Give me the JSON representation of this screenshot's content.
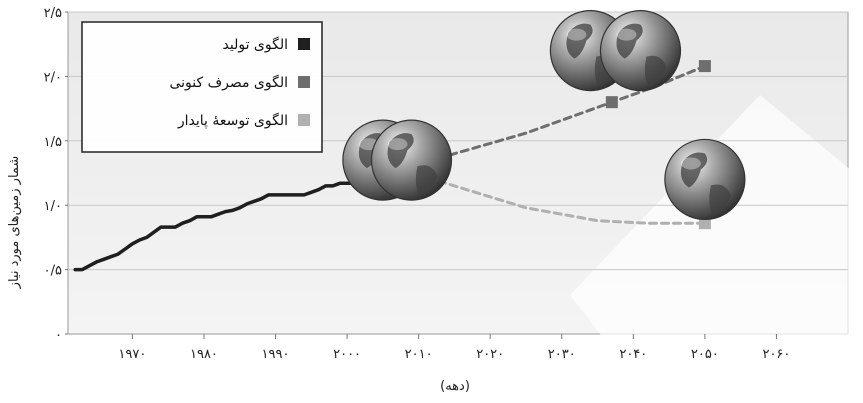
{
  "chart_data": {
    "type": "line",
    "ylabel": "شمار زمین‌های مورد نیاز",
    "xlabel": "(دهه)",
    "x_ticks": [
      1970,
      1980,
      1990,
      2000,
      2010,
      2020,
      2030,
      2040,
      2050,
      2060
    ],
    "x_tick_labels": [
      "۱۹۷۰",
      "۱۹۸۰",
      "۱۹۹۰",
      "۲۰۰۰",
      "۲۰۱۰",
      "۲۰۲۰",
      "۲۰۳۰",
      "۲۰۴۰",
      "۲۰۵۰",
      "۲۰۶۰"
    ],
    "y_ticks": [
      0,
      0.5,
      1.0,
      1.5,
      2.0,
      2.5
    ],
    "y_tick_labels": [
      "۰",
      "۰/۵",
      "۱/۰",
      "۱/۵",
      "۲/۰",
      "۲/۵"
    ],
    "xlim": [
      1961,
      2070
    ],
    "ylim": [
      0,
      2.5
    ],
    "grid": true,
    "legend_position": "top-left",
    "series": [
      {
        "name": "الگوی تولید",
        "color": "#1f1f1f",
        "style": "solid",
        "points": [
          {
            "x": 1962,
            "y": 0.5
          },
          {
            "x": 1963,
            "y": 0.5
          },
          {
            "x": 1964,
            "y": 0.53
          },
          {
            "x": 1965,
            "y": 0.56
          },
          {
            "x": 1966,
            "y": 0.58
          },
          {
            "x": 1967,
            "y": 0.6
          },
          {
            "x": 1968,
            "y": 0.62
          },
          {
            "x": 1969,
            "y": 0.66
          },
          {
            "x": 1970,
            "y": 0.7
          },
          {
            "x": 1971,
            "y": 0.73
          },
          {
            "x": 1972,
            "y": 0.75
          },
          {
            "x": 1973,
            "y": 0.79
          },
          {
            "x": 1974,
            "y": 0.83
          },
          {
            "x": 1975,
            "y": 0.83
          },
          {
            "x": 1976,
            "y": 0.83
          },
          {
            "x": 1977,
            "y": 0.86
          },
          {
            "x": 1978,
            "y": 0.88
          },
          {
            "x": 1979,
            "y": 0.91
          },
          {
            "x": 1980,
            "y": 0.91
          },
          {
            "x": 1981,
            "y": 0.91
          },
          {
            "x": 1982,
            "y": 0.93
          },
          {
            "x": 1983,
            "y": 0.95
          },
          {
            "x": 1984,
            "y": 0.96
          },
          {
            "x": 1985,
            "y": 0.98
          },
          {
            "x": 1986,
            "y": 1.01
          },
          {
            "x": 1987,
            "y": 1.03
          },
          {
            "x": 1988,
            "y": 1.05
          },
          {
            "x": 1989,
            "y": 1.08
          },
          {
            "x": 1990,
            "y": 1.08
          },
          {
            "x": 1991,
            "y": 1.08
          },
          {
            "x": 1992,
            "y": 1.08
          },
          {
            "x": 1993,
            "y": 1.08
          },
          {
            "x": 1994,
            "y": 1.08
          },
          {
            "x": 1995,
            "y": 1.1
          },
          {
            "x": 1996,
            "y": 1.12
          },
          {
            "x": 1997,
            "y": 1.15
          },
          {
            "x": 1998,
            "y": 1.15
          },
          {
            "x": 1999,
            "y": 1.17
          },
          {
            "x": 2000,
            "y": 1.17
          },
          {
            "x": 2001,
            "y": 1.17
          },
          {
            "x": 2002,
            "y": 1.18
          },
          {
            "x": 2003,
            "y": 1.2
          },
          {
            "x": 2004,
            "y": 1.22
          },
          {
            "x": 2005,
            "y": 1.22
          },
          {
            "x": 2006,
            "y": 1.23
          },
          {
            "x": 2007,
            "y": 1.25
          },
          {
            "x": 2008,
            "y": 1.27
          }
        ],
        "end_marker": {
          "x": 2008,
          "y": 1.27
        }
      },
      {
        "name": "الگوی مصرف کنونی",
        "color": "#6e6e6e",
        "style": "dashed",
        "points": [
          {
            "x": 2008,
            "y": 1.27
          },
          {
            "x": 2015,
            "y": 1.4
          },
          {
            "x": 2025,
            "y": 1.56
          },
          {
            "x": 2037,
            "y": 1.8
          },
          {
            "x": 2043,
            "y": 1.92
          },
          {
            "x": 2050,
            "y": 2.08
          }
        ],
        "markers": [
          {
            "x": 2037,
            "y": 1.8
          },
          {
            "x": 2050,
            "y": 2.08
          }
        ]
      },
      {
        "name": "الگوی توسعهٔ پایدار",
        "color": "#b0b0b0",
        "style": "dashed",
        "points": [
          {
            "x": 2008,
            "y": 1.27
          },
          {
            "x": 2015,
            "y": 1.15
          },
          {
            "x": 2025,
            "y": 0.98
          },
          {
            "x": 2035,
            "y": 0.88
          },
          {
            "x": 2042,
            "y": 0.86
          },
          {
            "x": 2050,
            "y": 0.86
          }
        ],
        "markers": [
          {
            "x": 2050,
            "y": 0.86
          }
        ]
      }
    ],
    "globe_icons": [
      {
        "name": "globe-icon",
        "x": 2005,
        "y": 1.35
      },
      {
        "name": "globe-icon",
        "x": 2009,
        "y": 1.35
      },
      {
        "name": "globe-icon",
        "x": 2034,
        "y": 2.2
      },
      {
        "name": "globe-icon",
        "x": 2041,
        "y": 2.2
      },
      {
        "name": "globe-icon",
        "x": 2050,
        "y": 1.2
      }
    ]
  }
}
